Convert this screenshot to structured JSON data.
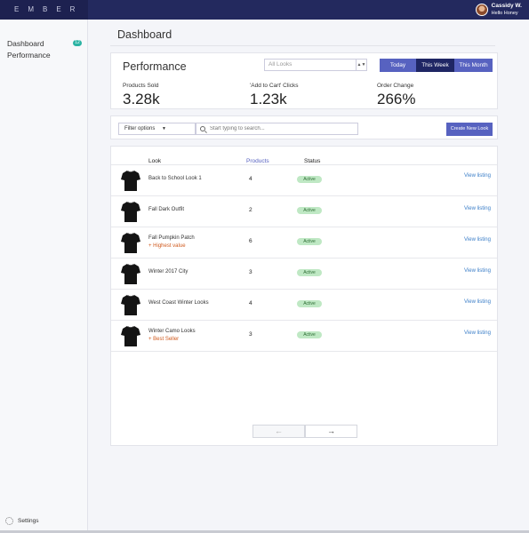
{
  "app": {
    "logo": "EMBER"
  },
  "user": {
    "name": "Cassidy W.",
    "subtitle": "Hello Honey"
  },
  "sidebar": {
    "items": [
      {
        "label": "Dashboard",
        "badge": "12"
      },
      {
        "label": "Performance"
      }
    ],
    "settings_label": "Settings"
  },
  "page": {
    "title": "Dashboard"
  },
  "performance": {
    "title": "Performance",
    "looks_select": "All Looks",
    "ranges": [
      "Today",
      "This Week",
      "This Month"
    ],
    "selected_range": "This Week",
    "stats": [
      {
        "label": "Products Sold",
        "value": "3.28k"
      },
      {
        "label": "'Add to Cart' Clicks",
        "value": "1.23k"
      },
      {
        "label": "Order Change",
        "value": "266%"
      }
    ]
  },
  "filter": {
    "filter_label": "Filter options",
    "search_placeholder": "Start typing to search...",
    "create_label": "Create New Look"
  },
  "table": {
    "headers": {
      "look": "Look",
      "products": "Products",
      "status": "Status"
    },
    "rows": [
      {
        "name": "Back to School Look 1",
        "tag": "",
        "products": "4",
        "status": "Active",
        "link": "View listing"
      },
      {
        "name": "Fall Dark Outfit",
        "tag": "",
        "products": "2",
        "status": "Active",
        "link": "View listing"
      },
      {
        "name": "Fall Pumpkin Patch",
        "tag": "+ Highest value",
        "products": "6",
        "status": "Active",
        "link": "View listing"
      },
      {
        "name": "Winter 2017 City",
        "tag": "",
        "products": "3",
        "status": "Active",
        "link": "View listing"
      },
      {
        "name": "West Coast Winter Looks",
        "tag": "",
        "products": "4",
        "status": "Active",
        "link": "View listing"
      },
      {
        "name": "Winter Camo Looks",
        "tag": "+ Best Seller",
        "products": "3",
        "status": "Active",
        "link": "View listing"
      }
    ]
  },
  "pager": {
    "prev": "←",
    "next": "→"
  },
  "colors": {
    "navy": "#23295e",
    "accent": "#5762c0",
    "active_green": "#bfe8c4",
    "link": "#3b7ec8",
    "tag": "#d05a1e"
  }
}
